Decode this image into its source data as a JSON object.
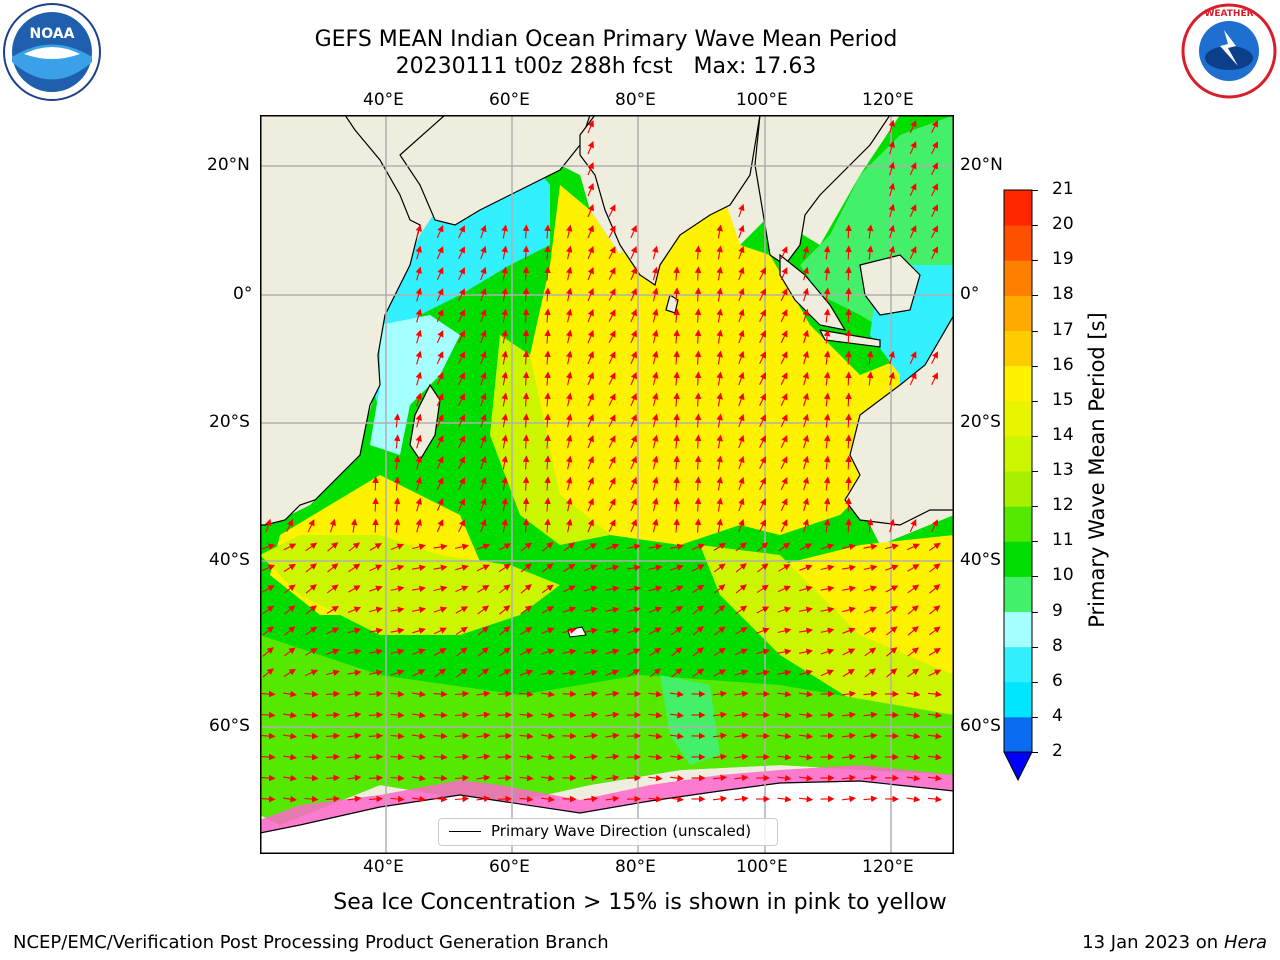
{
  "title": {
    "line1": "GEFS MEAN Indian Ocean Primary Wave Mean Period",
    "line2": "20230111 t00z 288h fcst   Max: 17.63"
  },
  "logos": {
    "left": "NOAA",
    "right": "NATIONAL WEATHER SERVICE"
  },
  "axes": {
    "lon_top": [
      "40°E",
      "60°E",
      "80°E",
      "100°E",
      "120°E"
    ],
    "lon_bottom": [
      "40°E",
      "60°E",
      "80°E",
      "100°E",
      "120°E"
    ],
    "lat_left": [
      "20°N",
      "0°",
      "20°S",
      "40°S",
      "60°S"
    ],
    "lat_right": [
      "20°N",
      "0°",
      "20°S",
      "40°S",
      "60°S"
    ]
  },
  "legend": {
    "label": "Primary Wave Direction (unscaled)"
  },
  "colorbar": {
    "label": "Primary Wave Mean Period [s]",
    "ticks": [
      "2",
      "4",
      "6",
      "8",
      "9",
      "10",
      "11",
      "12",
      "13",
      "14",
      "15",
      "16",
      "17",
      "18",
      "19",
      "20",
      "21"
    ],
    "colors": [
      "#0a6cf0",
      "#00e6ff",
      "#33f0ff",
      "#a6ffff",
      "#44f06a",
      "#00dd00",
      "#55e800",
      "#a8f000",
      "#ccf500",
      "#e9f500",
      "#fff200",
      "#ffcc00",
      "#ffaa00",
      "#ff8000",
      "#ff5000",
      "#ff2600"
    ],
    "extend_color": "#0000ff"
  },
  "subtitle": "Sea Ice Concentration > 15% is shown in pink to yellow",
  "footer": {
    "left": "NCEP/EMC/Verification Post Processing Product Generation Branch",
    "right_date": "13 Jan 2023 on",
    "right_machine": "Hera"
  }
}
